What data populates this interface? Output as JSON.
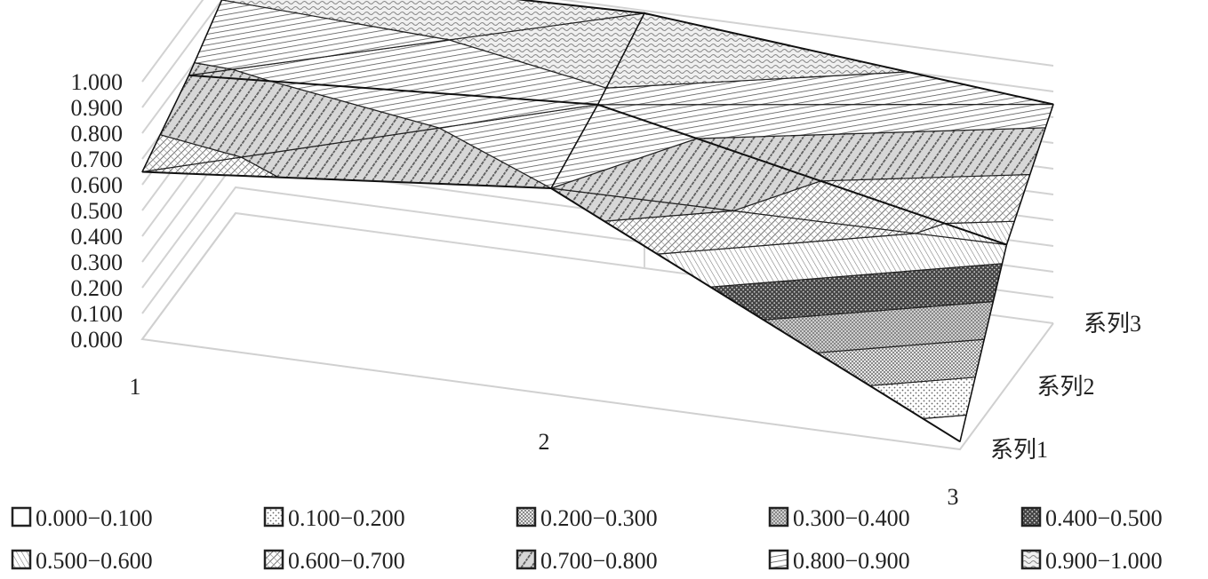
{
  "chart_data": {
    "type": "surface",
    "title": "",
    "x_categories": [
      "1",
      "2",
      "3"
    ],
    "series": [
      {
        "name": "系列1",
        "values": [
          0.65,
          0.8,
          0.03
        ]
      },
      {
        "name": "系列2",
        "values": [
          0.78,
          0.88,
          0.55
        ]
      },
      {
        "name": "系列3",
        "values": [
          0.95,
          0.99,
          0.85
        ]
      }
    ],
    "z_ticks": [
      "0.000",
      "0.100",
      "0.200",
      "0.300",
      "0.400",
      "0.500",
      "0.600",
      "0.700",
      "0.800",
      "0.900",
      "1.000"
    ],
    "zlim": [
      0,
      1
    ],
    "grid": true,
    "legend": {
      "position": "bottom",
      "entries": [
        {
          "label": "0.000−0.100",
          "pattern": "blank"
        },
        {
          "label": "0.100−0.200",
          "pattern": "dots-sparse"
        },
        {
          "label": "0.200−0.300",
          "pattern": "checker-fine"
        },
        {
          "label": "0.300−0.400",
          "pattern": "dots-dense"
        },
        {
          "label": "0.400−0.500",
          "pattern": "dark-dots"
        },
        {
          "label": "0.500−0.600",
          "pattern": "diagonal-fine"
        },
        {
          "label": "0.600−0.700",
          "pattern": "checker-coarse"
        },
        {
          "label": "0.700−0.800",
          "pattern": "diagonal-bold"
        },
        {
          "label": "0.800−0.900",
          "pattern": "vertical"
        },
        {
          "label": "0.900−1.000",
          "pattern": "wave"
        }
      ]
    }
  }
}
